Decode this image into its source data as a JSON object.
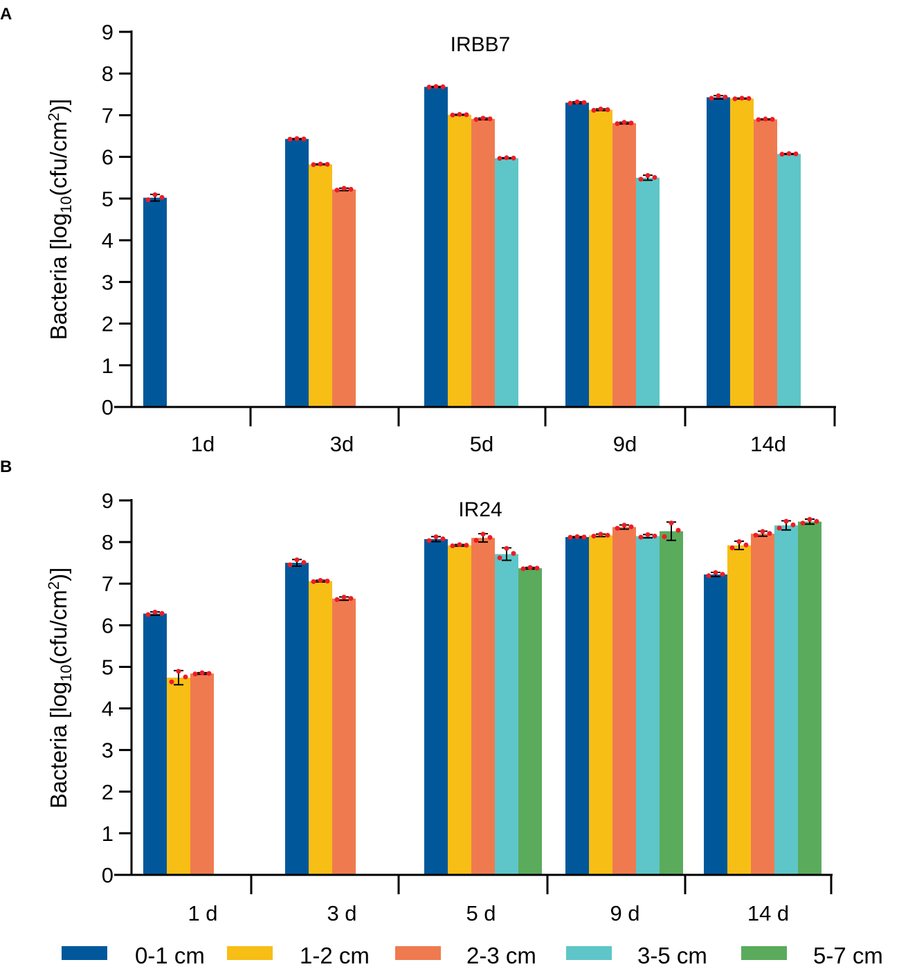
{
  "colors": {
    "0-1 cm": "#00589b",
    "1-2 cm": "#f7be16",
    "2-3 cm": "#f07a4f",
    "3-5 cm": "#5ec6c8",
    "5-7 cm": "#5aab5c",
    "points": "#ee1c25"
  },
  "legend": [
    "0-1 cm",
    "1-2 cm",
    "2-3 cm",
    "3-5 cm",
    "5-7 cm"
  ],
  "chart_data": [
    {
      "panel": "A",
      "type": "bar",
      "title": "IRBB7",
      "ylabel": "Bacteria [log10(cfu/cm2)]",
      "ylim": [
        0,
        9
      ],
      "yticks": [
        "0",
        "1",
        "2",
        "3",
        "4",
        "5",
        "6",
        "7",
        "8",
        "9"
      ],
      "categories": [
        "1d",
        "3d",
        "5d",
        "9d",
        "14d"
      ],
      "series": [
        {
          "name": "0-1 cm",
          "values": [
            5.02,
            6.43,
            7.68,
            7.3,
            7.43
          ],
          "errors": [
            0.08,
            0.01,
            0.01,
            0.02,
            0.04
          ]
        },
        {
          "name": "1-2 cm",
          "values": [
            null,
            5.82,
            7.01,
            7.13,
            7.4
          ],
          "errors": [
            null,
            0.01,
            0.01,
            0.02,
            0.01
          ]
        },
        {
          "name": "2-3 cm",
          "values": [
            null,
            5.22,
            6.91,
            6.81,
            6.9
          ],
          "errors": [
            null,
            0.03,
            0.02,
            0.02,
            0.01
          ]
        },
        {
          "name": "3-5 cm",
          "values": [
            null,
            null,
            5.97,
            5.5,
            6.07
          ],
          "errors": [
            null,
            null,
            0.01,
            0.06,
            0.01
          ]
        }
      ]
    },
    {
      "panel": "B",
      "type": "bar",
      "title": "IR24",
      "ylabel": "Bacteria [log10(cfu/cm2)]",
      "ylim": [
        0,
        9
      ],
      "yticks": [
        "0",
        "1",
        "2",
        "3",
        "4",
        "5",
        "6",
        "7",
        "8",
        "9"
      ],
      "categories": [
        "1 d",
        "3 d",
        "5 d",
        "9 d",
        "14 d"
      ],
      "series": [
        {
          "name": "0-1 cm",
          "values": [
            6.28,
            7.5,
            8.07,
            8.12,
            7.22
          ],
          "errors": [
            0.04,
            0.08,
            0.06,
            0.01,
            0.05
          ]
        },
        {
          "name": "1-2 cm",
          "values": [
            4.74,
            7.06,
            7.92,
            8.16,
            7.92
          ],
          "errors": [
            0.17,
            0.02,
            0.02,
            0.03,
            0.1
          ]
        },
        {
          "name": "2-3 cm",
          "values": [
            4.84,
            6.64,
            8.1,
            8.36,
            8.2
          ],
          "errors": [
            0.02,
            0.04,
            0.1,
            0.05,
            0.06
          ]
        },
        {
          "name": "3-5 cm",
          "values": [
            null,
            null,
            7.71,
            8.14,
            8.4
          ],
          "errors": [
            null,
            null,
            0.15,
            0.04,
            0.11
          ]
        },
        {
          "name": "5-7 cm",
          "values": [
            null,
            null,
            7.37,
            8.26,
            8.49
          ],
          "errors": [
            null,
            null,
            0.02,
            0.22,
            0.06
          ]
        }
      ]
    }
  ]
}
